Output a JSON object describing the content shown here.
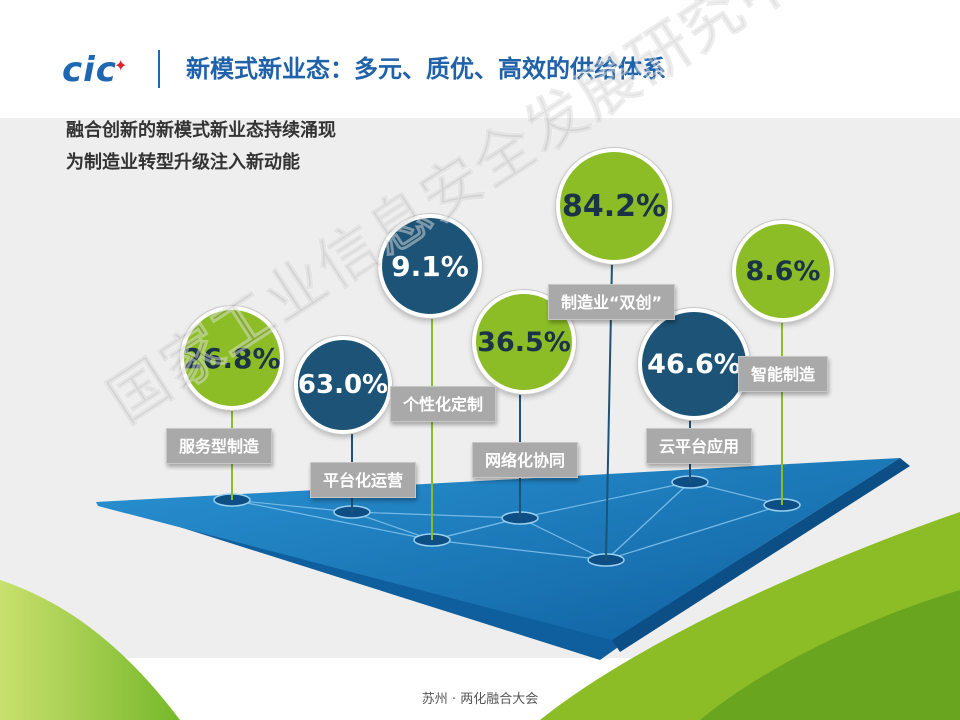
{
  "header": {
    "logo_text": "cic",
    "title": "新模式新业态：多元、质优、高效的供给体系"
  },
  "subtitle": {
    "line1": "融合创新的新模式新业态持续涌现",
    "line2": "为制造业转型升级注入新动能"
  },
  "items": [
    {
      "value": "26.8%",
      "label": "服务型制造",
      "style": "green"
    },
    {
      "value": "63.0%",
      "label": "平台化运营",
      "style": "navy"
    },
    {
      "value": "9.1%",
      "label": "个性化定制",
      "style": "navy"
    },
    {
      "value": "36.5%",
      "label": "网络化协同",
      "style": "green"
    },
    {
      "value": "84.2%",
      "label": "制造业“双创”",
      "style": "green"
    },
    {
      "value": "46.6%",
      "label": "云平台应用",
      "style": "navy"
    },
    {
      "value": "8.6%",
      "label": "智能制造",
      "style": "green"
    }
  ],
  "footer": "苏州 · 两化融合大会",
  "watermark": "国家工业信息安全发展研究中心",
  "colors": {
    "brand_blue": "#1f67b1",
    "green": "#8cbd27",
    "navy": "#1c5376",
    "plane_blue": "#1a7cc0",
    "label_gray": "#a9a9a9"
  }
}
